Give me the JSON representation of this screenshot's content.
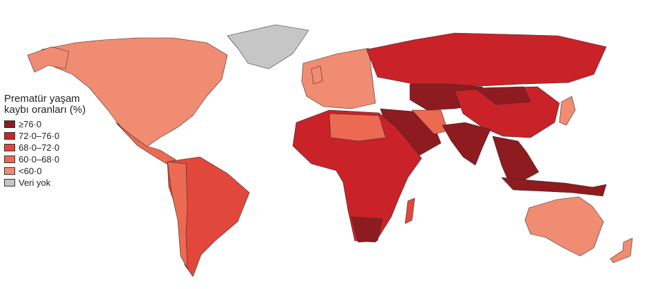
{
  "legend": {
    "title": "Prematür yaşam kaybı oranları (%)",
    "items": [
      {
        "label": "≥76·0",
        "color": "#8e1b1f"
      },
      {
        "label": "72·0–76·0",
        "color": "#c92228"
      },
      {
        "label": "68·0–72·0",
        "color": "#e2473b"
      },
      {
        "label": "60·0–68·0",
        "color": "#ec6a52"
      },
      {
        "label": "<60·0",
        "color": "#f08c72"
      },
      {
        "label": "Veri yok",
        "color": "#c6c6c6"
      }
    ]
  }
}
